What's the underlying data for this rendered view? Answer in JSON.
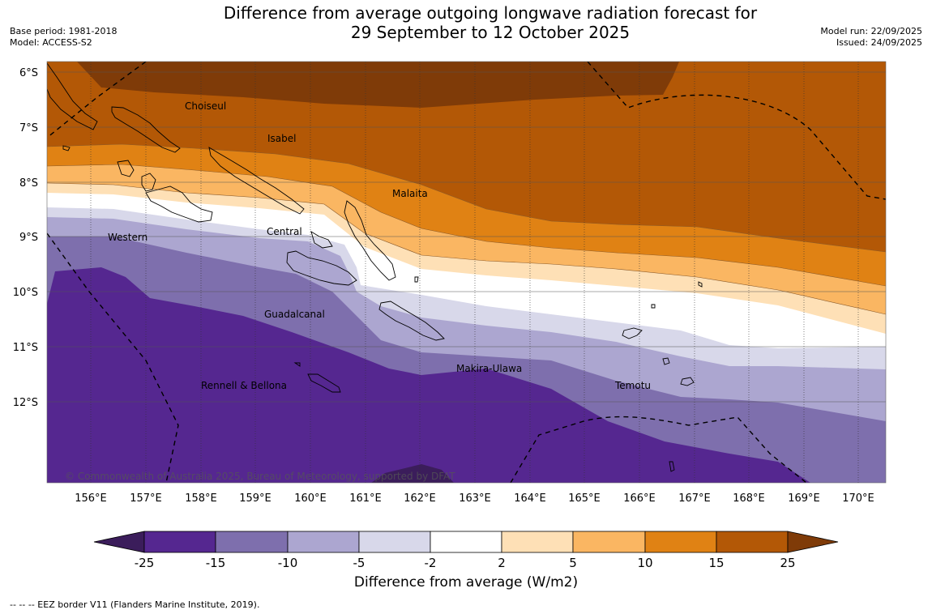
{
  "header": {
    "title_line1": "Difference from average outgoing longwave radiation forecast for",
    "title_line2": "29 September to 12 October 2025",
    "base_period": "Base period: 1981-2018",
    "model": "Model: ACCESS-S2",
    "model_run": "Model run: 22/09/2025",
    "issued": "Issued: 24/09/2025"
  },
  "map": {
    "lat_labels": [
      "6°S",
      "7°S",
      "8°S",
      "9°S",
      "10°S",
      "11°S",
      "12°S"
    ],
    "lon_labels": [
      "156°E",
      "157°E",
      "158°E",
      "159°E",
      "160°E",
      "161°E",
      "162°E",
      "163°E",
      "164°E",
      "165°E",
      "166°E",
      "167°E",
      "168°E",
      "169°E",
      "170°E"
    ],
    "provinces": {
      "choiseul": "Choiseul",
      "isabel": "Isabel",
      "malaita": "Malaita",
      "central": "Central",
      "western": "Western",
      "guadalcanal": "Guadalcanal",
      "makira_ulawa": "Makira-Ulawa",
      "temotu": "Temotu",
      "rennell_bellona": "Rennell & Bellona"
    },
    "copyright": "© Commonwealth of Australia 2025, Bureau of Meteorology, supported by DFAT"
  },
  "colorbar": {
    "ticks": [
      "-25",
      "-15",
      "-10",
      "-5",
      "-2",
      "2",
      "5",
      "10",
      "15",
      "25"
    ],
    "colors": [
      "#3b1d5b",
      "#552790",
      "#7e6fad",
      "#aca6d0",
      "#d8d8ea",
      "#ffffff",
      "#fee0b6",
      "#fab662",
      "#e08214",
      "#b35806",
      "#7f3b08"
    ],
    "label": "Difference from average (W/m2)"
  },
  "footnote": "--  --  -- EEZ border V11 (Flanders Marine Institute, 2019)."
}
